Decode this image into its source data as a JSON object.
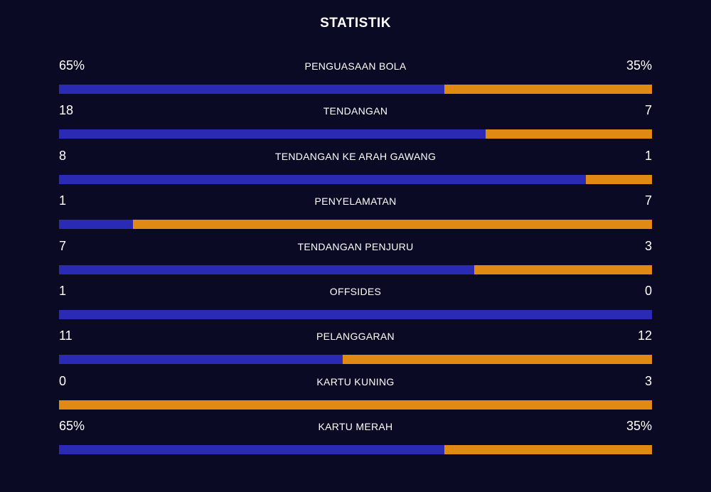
{
  "title": "STATISTIK",
  "colors": {
    "home": "#2a2ab4",
    "away": "#e08a14"
  },
  "stats": [
    {
      "label": "PENGUASAAN BOLA",
      "home": "65%",
      "away": "35%",
      "home_share": 0.65
    },
    {
      "label": "TENDANGAN",
      "home": "18",
      "away": "7",
      "home_share": 0.72
    },
    {
      "label": "TENDANGAN KE ARAH GAWANG",
      "home": "8",
      "away": "1",
      "home_share": 0.889
    },
    {
      "label": "PENYELAMATAN",
      "home": "1",
      "away": "7",
      "home_share": 0.125
    },
    {
      "label": "TENDANGAN PENJURU",
      "home": "7",
      "away": "3",
      "home_share": 0.7
    },
    {
      "label": "OFFSIDES",
      "home": "1",
      "away": "0",
      "home_share": 1.0
    },
    {
      "label": "PELANGGARAN",
      "home": "11",
      "away": "12",
      "home_share": 0.478
    },
    {
      "label": "KARTU KUNING",
      "home": "0",
      "away": "3",
      "home_share": 0.0
    },
    {
      "label": "KARTU MERAH",
      "home": "65%",
      "away": "35%",
      "home_share": 0.65
    }
  ]
}
